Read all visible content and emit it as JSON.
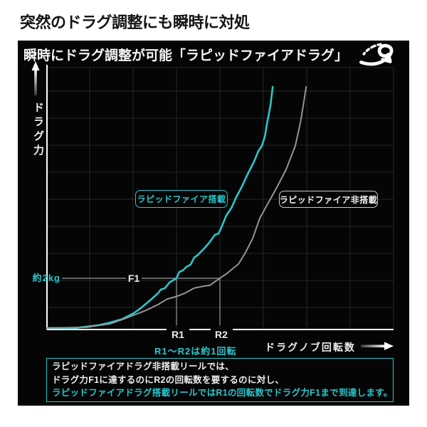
{
  "title": "突然のドラグ調整にも瞬時に対処",
  "panel": {
    "heading": "瞬時にドラグ調整が可能「ラピッドファイアドラグ」",
    "logo": "rapid-fire-drag-logo"
  },
  "colors": {
    "accent_cyan": "#2ac6cd",
    "curve_gray": "#949494",
    "panel_bg": "#050505",
    "grid": "#282828",
    "axis_white": "#ffffff",
    "ref_line": "#9a9a9a"
  },
  "chart_data": {
    "type": "line",
    "xlabel": "ドラグノブ回転数",
    "ylabel": "ドラグ力",
    "grid": true,
    "xlim_rotations": [
      0,
      8
    ],
    "ylim_kg": [
      0,
      10.4
    ],
    "x_axis": {
      "numeric_ticks": false,
      "ref_marks": [
        {
          "label": "R1",
          "rotations": 2.98
        },
        {
          "label": "R2",
          "rotations": 3.98
        }
      ],
      "note": "R1～R2は約1回転"
    },
    "y_axis": {
      "numeric_ticks": false,
      "ref_level": {
        "label": "F1",
        "value_label": "約2kg",
        "kg": 2.0
      }
    },
    "series": [
      {
        "name": "ラピッドファイア搭載",
        "color": "#2ac6cd",
        "points": [
          [
            0,
            0.03
          ],
          [
            0.64,
            0.03
          ],
          [
            1.18,
            0.14
          ],
          [
            1.46,
            0.25
          ],
          [
            1.74,
            0.39
          ],
          [
            2.0,
            0.62
          ],
          [
            2.16,
            0.82
          ],
          [
            2.28,
            0.99
          ],
          [
            2.41,
            1.18
          ],
          [
            2.56,
            1.41
          ],
          [
            2.62,
            1.55
          ],
          [
            2.72,
            1.61
          ],
          [
            2.82,
            1.83
          ],
          [
            2.98,
            2.0
          ],
          [
            3.05,
            2.25
          ],
          [
            3.13,
            2.31
          ],
          [
            3.21,
            2.45
          ],
          [
            3.31,
            2.54
          ],
          [
            3.39,
            2.82
          ],
          [
            3.48,
            2.93
          ],
          [
            3.64,
            3.21
          ],
          [
            3.75,
            3.44
          ],
          [
            3.87,
            3.72
          ],
          [
            3.95,
            3.77
          ],
          [
            4.03,
            4.06
          ],
          [
            4.13,
            4.48
          ],
          [
            4.25,
            4.79
          ],
          [
            4.36,
            5.21
          ],
          [
            4.49,
            5.63
          ],
          [
            4.62,
            6.11
          ],
          [
            4.77,
            6.62
          ],
          [
            4.87,
            7.04
          ],
          [
            4.95,
            7.24
          ],
          [
            5.02,
            7.61
          ],
          [
            5.07,
            8.14
          ],
          [
            5.15,
            8.87
          ],
          [
            5.2,
            9.58
          ]
        ]
      },
      {
        "name": "ラピッドファイア非搭載",
        "color": "#949494",
        "points": [
          [
            0,
            0.03
          ],
          [
            0.92,
            0.06
          ],
          [
            1.46,
            0.2
          ],
          [
            1.74,
            0.37
          ],
          [
            2.0,
            0.54
          ],
          [
            2.28,
            0.73
          ],
          [
            2.56,
            0.96
          ],
          [
            2.77,
            1.18
          ],
          [
            2.97,
            1.27
          ],
          [
            3.18,
            1.41
          ],
          [
            3.39,
            1.61
          ],
          [
            3.62,
            1.69
          ],
          [
            3.75,
            1.72
          ],
          [
            3.98,
            2.0
          ],
          [
            4.13,
            2.17
          ],
          [
            4.25,
            2.34
          ],
          [
            4.41,
            2.56
          ],
          [
            4.57,
            3.01
          ],
          [
            4.74,
            3.58
          ],
          [
            4.9,
            4.37
          ],
          [
            5.07,
            4.9
          ],
          [
            5.28,
            5.55
          ],
          [
            5.51,
            6.31
          ],
          [
            5.72,
            7.24
          ],
          [
            5.84,
            8.17
          ],
          [
            5.92,
            9.01
          ],
          [
            5.97,
            9.58
          ]
        ]
      }
    ]
  },
  "footnote": {
    "lines": [
      {
        "text": "ラピッドファイアドラグ非搭載リールでは、",
        "emphasis": false
      },
      {
        "text": "ドラグ力F1に達するのにR2の回転数を要するのに対し、",
        "emphasis": false
      },
      {
        "text": "ラピッドファイアドラグ搭載リールではR1の回転数でドラグ力F1まで到達します。",
        "emphasis": true
      }
    ]
  }
}
